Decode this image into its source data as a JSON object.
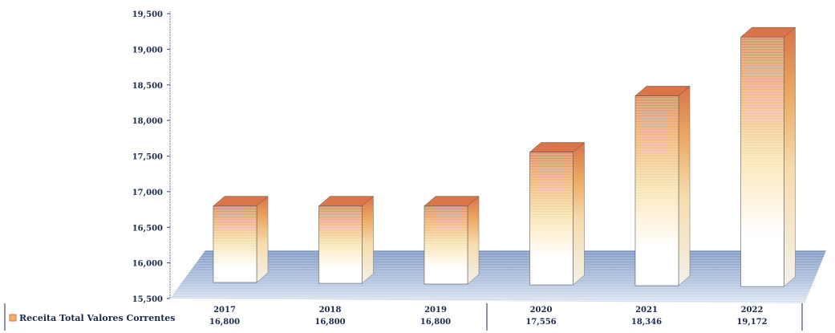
{
  "chart_data": {
    "type": "bar",
    "categories": [
      "2017",
      "2018",
      "2019",
      "2020",
      "2021",
      "2022"
    ],
    "series": [
      {
        "name": "Receita Total Valores Correntes",
        "values": [
          16800,
          16800,
          16800,
          17556,
          18346,
          19172
        ]
      }
    ],
    "value_labels": [
      "16,800",
      "16,800",
      "16,800",
      "17,556",
      "18,346",
      "19,172"
    ],
    "ylim": [
      15500,
      19500
    ],
    "yticks": [
      "15,500",
      "16,000",
      "16,500",
      "17,000",
      "17,500",
      "18,000",
      "18,500",
      "19,000",
      "19,500"
    ],
    "title": "",
    "xlabel": "",
    "ylabel": "",
    "grid": false,
    "legend": "bottom-left, inline with data table",
    "colors": {
      "bar_top": "#e2835a",
      "bar_mid": "#f6c77a",
      "bar_face": "#ffffff",
      "floor": "#6f8fbf",
      "text": "#1b2a4a"
    }
  }
}
